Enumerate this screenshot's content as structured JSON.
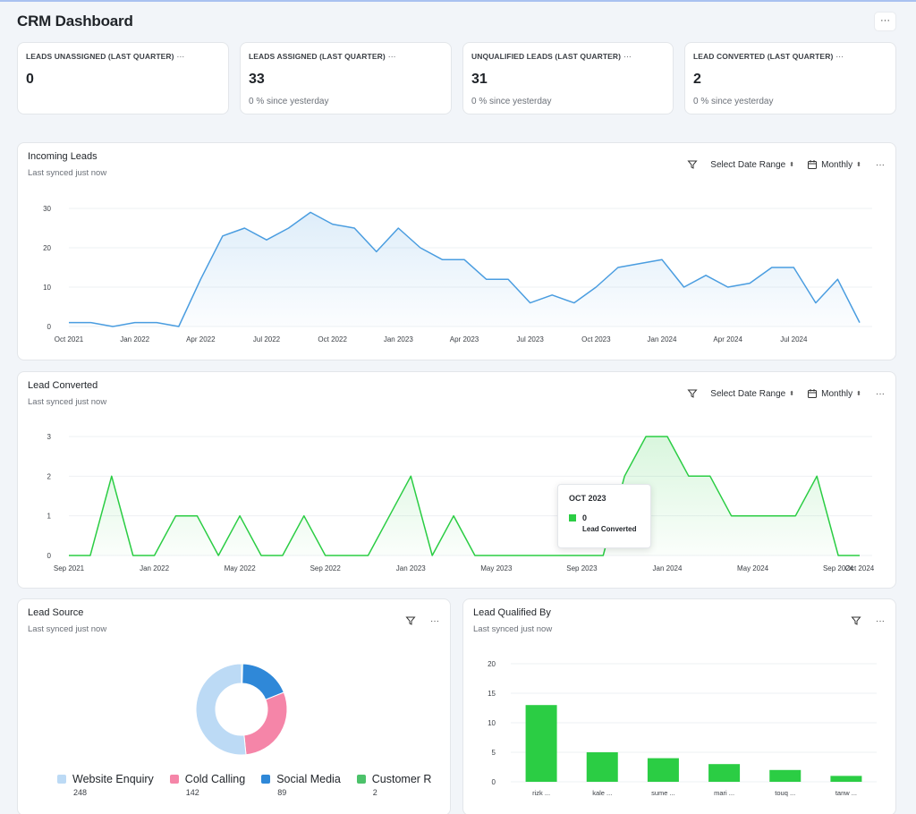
{
  "page": {
    "title": "CRM Dashboard",
    "menu": "···"
  },
  "stats": [
    {
      "label": "LEADS UNASSIGNED (LAST QUARTER)",
      "value": "0",
      "sub": ""
    },
    {
      "label": "LEADS ASSIGNED (LAST QUARTER)",
      "value": "33",
      "sub": "0 % since yesterday"
    },
    {
      "label": "UNQUALIFIED LEADS (LAST QUARTER)",
      "value": "31",
      "sub": "0 % since yesterday"
    },
    {
      "label": "LEAD CONVERTED (LAST QUARTER)",
      "value": "2",
      "sub": "0 % since yesterday"
    }
  ],
  "incoming": {
    "title": "Incoming Leads",
    "sub": "Last synced just now",
    "date_range": "Select Date Range",
    "period": "Monthly",
    "menu": "···"
  },
  "converted": {
    "title": "Lead Converted",
    "sub": "Last synced just now",
    "date_range": "Select Date Range",
    "period": "Monthly",
    "menu": "···",
    "tooltip": {
      "title": "OCT 2023",
      "value": "0",
      "series": "Lead Converted"
    }
  },
  "source": {
    "title": "Lead Source",
    "sub": "Last synced just now",
    "menu": "···",
    "legend": [
      {
        "name": "Website Enquiry",
        "count": "248",
        "color": "#bcdaf5"
      },
      {
        "name": "Cold Calling",
        "count": "142",
        "color": "#f585a8"
      },
      {
        "name": "Social Media",
        "count": "89",
        "color": "#2f88d8"
      },
      {
        "name": "Customer R",
        "count": "2",
        "color": "#4cc26a"
      }
    ]
  },
  "qualified": {
    "title": "Lead Qualified By",
    "sub": "Last synced just now",
    "menu": "···"
  },
  "chart_data": [
    {
      "type": "area",
      "title": "Incoming Leads",
      "color": "#4a9de0",
      "ylim": [
        0,
        30
      ],
      "yticks": [
        "0",
        "10",
        "20",
        "30"
      ],
      "xticks": [
        "Oct 2021",
        "Jan 2022",
        "Apr 2022",
        "Jul 2022",
        "Oct 2022",
        "Jan 2023",
        "Apr 2023",
        "Jul 2023",
        "Oct 2023",
        "Jan 2024",
        "Apr 2024",
        "Jul 2024"
      ],
      "x": [
        "2021-10",
        "2021-11",
        "2021-12",
        "2022-01",
        "2022-02",
        "2022-03",
        "2022-04",
        "2022-05",
        "2022-06",
        "2022-07",
        "2022-08",
        "2022-09",
        "2022-10",
        "2022-11",
        "2022-12",
        "2023-01",
        "2023-02",
        "2023-03",
        "2023-04",
        "2023-05",
        "2023-06",
        "2023-07",
        "2023-08",
        "2023-09",
        "2023-10",
        "2023-11",
        "2023-12",
        "2024-01",
        "2024-02",
        "2024-03",
        "2024-04",
        "2024-05",
        "2024-06",
        "2024-07",
        "2024-08",
        "2024-09",
        "2024-10"
      ],
      "values": [
        1,
        1,
        0,
        1,
        1,
        0,
        12,
        23,
        25,
        22,
        25,
        29,
        26,
        25,
        19,
        25,
        20,
        17,
        17,
        12,
        12,
        6,
        8,
        6,
        10,
        15,
        16,
        17,
        10,
        13,
        10,
        11,
        15,
        15,
        6,
        12,
        1
      ]
    },
    {
      "type": "area",
      "title": "Lead Converted",
      "color": "#2bcd44",
      "ylim": [
        0,
        3
      ],
      "yticks": [
        "0",
        "1",
        "2",
        "3"
      ],
      "xticks": [
        "Sep 2021",
        "Jan 2022",
        "May 2022",
        "Sep 2022",
        "Jan 2023",
        "May 2023",
        "Sep 2023",
        "Jan 2024",
        "May 2024",
        "Sep 2024",
        "Oct 2024"
      ],
      "x": [
        "2021-09",
        "2021-10",
        "2021-11",
        "2021-12",
        "2022-01",
        "2022-02",
        "2022-03",
        "2022-04",
        "2022-05",
        "2022-06",
        "2022-07",
        "2022-08",
        "2022-09",
        "2022-10",
        "2022-11",
        "2022-12",
        "2023-01",
        "2023-02",
        "2023-03",
        "2023-04",
        "2023-05",
        "2023-06",
        "2023-07",
        "2023-08",
        "2023-09",
        "2023-10",
        "2023-11",
        "2023-12",
        "2024-01",
        "2024-02",
        "2024-03",
        "2024-04",
        "2024-05",
        "2024-06",
        "2024-07",
        "2024-08",
        "2024-09",
        "2024-10"
      ],
      "values": [
        0,
        0,
        2,
        0,
        0,
        1,
        1,
        0,
        1,
        0,
        0,
        1,
        0,
        0,
        0,
        1,
        2,
        0,
        1,
        0,
        0,
        0,
        0,
        0,
        0,
        0,
        2,
        3,
        3,
        2,
        2,
        1,
        1,
        1,
        1,
        2,
        0,
        0
      ]
    },
    {
      "type": "pie",
      "title": "Lead Source",
      "categories": [
        "Website Enquiry",
        "Cold Calling",
        "Social Media",
        "Customer R"
      ],
      "values": [
        248,
        142,
        89,
        2
      ],
      "colors": [
        "#bcdaf5",
        "#f585a8",
        "#2f88d8",
        "#4cc26a"
      ]
    },
    {
      "type": "bar",
      "title": "Lead Qualified By",
      "color": "#2bcd44",
      "ylim": [
        0,
        20
      ],
      "yticks": [
        "0",
        "5",
        "10",
        "15",
        "20"
      ],
      "categories": [
        "rizk ...",
        "kale ...",
        "sume ...",
        "mari ...",
        "touq ...",
        "tanw ..."
      ],
      "values": [
        13,
        5,
        4,
        3,
        2,
        1
      ]
    }
  ]
}
